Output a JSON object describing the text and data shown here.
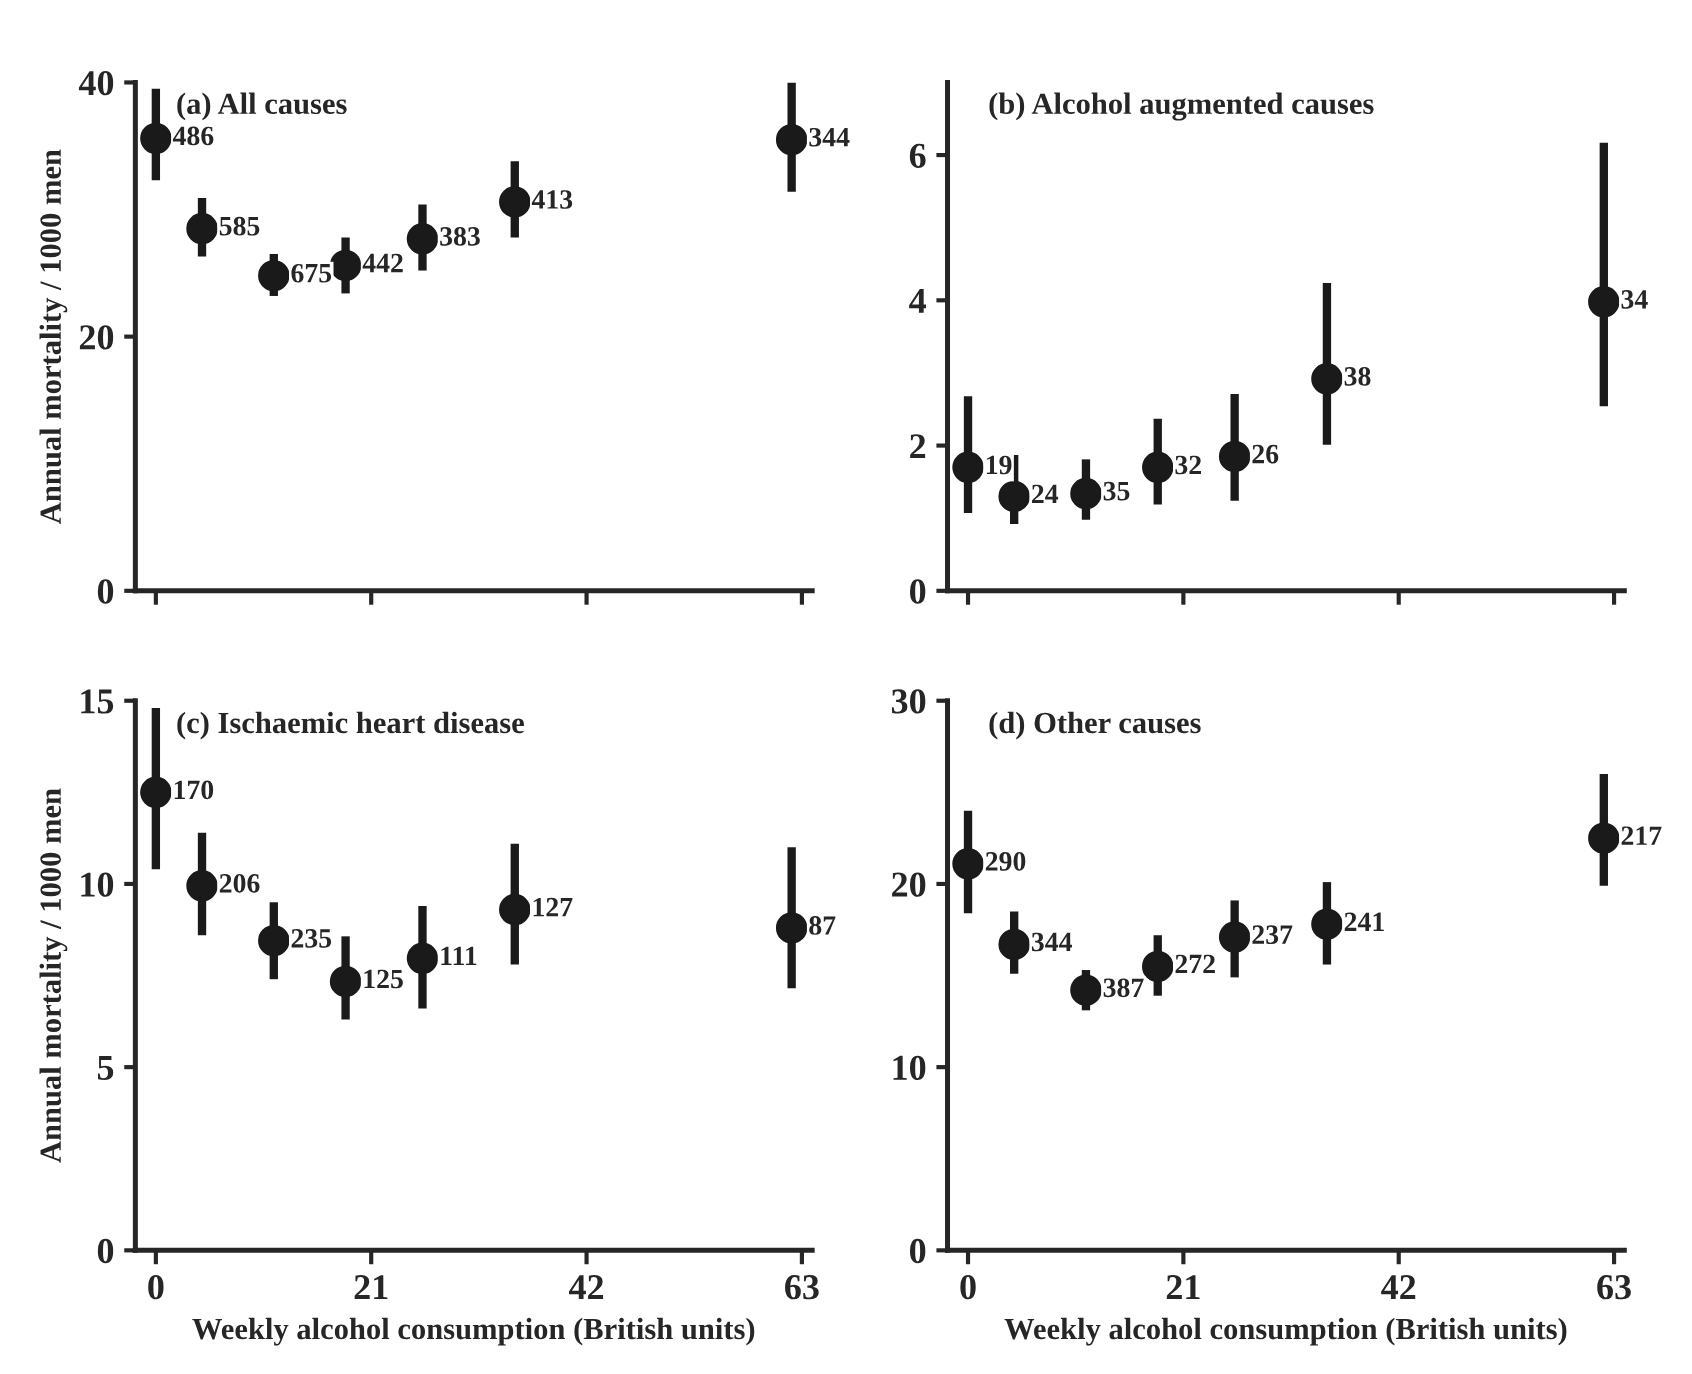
{
  "chart_data": [
    {
      "type": "scatter",
      "title": "(a) All causes",
      "ylabel": "Annual mortality / 1000 men",
      "marker": "circle",
      "tick_labels": "y",
      "xlim": [
        -2,
        64
      ],
      "xticks": [
        {
          "value": 0,
          "label": null
        },
        {
          "value": 21,
          "label": null
        },
        {
          "value": 42,
          "label": null
        },
        {
          "value": 63,
          "label": null
        }
      ],
      "ylim": [
        0,
        40
      ],
      "yticks": [
        0,
        20,
        40
      ],
      "x": [
        0,
        4.5,
        11.5,
        18.5,
        26,
        35,
        62
      ],
      "series": [
        {
          "color": "#1a1a1a",
          "values": [
            35.6,
            28.5,
            24.8,
            25.6,
            27.7,
            30.6,
            35.5
          ],
          "errors": [
            [
              32.3,
              39.5
            ],
            [
              26.3,
              30.9
            ],
            [
              23.2,
              26.5
            ],
            [
              23.4,
              27.8
            ],
            [
              25.2,
              30.4
            ],
            [
              27.8,
              33.8
            ],
            [
              31.4,
              40
            ]
          ]
        }
      ],
      "annotations": [
        {
          "text": "486",
          "x": 0,
          "y": 35.6
        },
        {
          "text": "585",
          "x": 4.5,
          "y": 28.5
        },
        {
          "text": "675",
          "x": 11.5,
          "y": 24.8
        },
        {
          "text": "442",
          "x": 18.5,
          "y": 25.6
        },
        {
          "text": "383",
          "x": 26,
          "y": 27.7
        },
        {
          "text": "413",
          "x": 35,
          "y": 30.6
        },
        {
          "text": "344",
          "x": 62,
          "y": 35.5
        }
      ]
    },
    {
      "type": "scatter",
      "title": "(b) Alcohol augmented causes",
      "marker": "circle",
      "tick_labels": "y",
      "xlim": [
        -2,
        64
      ],
      "xticks": [
        {
          "value": 0,
          "label": null
        },
        {
          "value": 21,
          "label": null
        },
        {
          "value": 42,
          "label": null
        },
        {
          "value": 63,
          "label": null
        }
      ],
      "ylim": [
        0,
        7
      ],
      "yticks": [
        0,
        2,
        4,
        6
      ],
      "x": [
        0,
        4.5,
        11.5,
        18.5,
        26,
        35,
        62
      ],
      "series": [
        {
          "color": "#1a1a1a",
          "values": [
            1.7,
            1.3,
            1.34,
            1.7,
            1.85,
            2.92,
            3.98
          ],
          "errors": [
            [
              1.07,
              2.68
            ],
            [
              0.92,
              1.87
            ],
            [
              0.98,
              1.81
            ],
            [
              1.19,
              2.37
            ],
            [
              1.24,
              2.71
            ],
            [
              2.01,
              4.24
            ],
            [
              2.54,
              6.17
            ]
          ]
        }
      ],
      "annotations": [
        {
          "text": "19",
          "x": 0,
          "y": 1.7
        },
        {
          "text": "24",
          "x": 4.5,
          "y": 1.3
        },
        {
          "text": "35",
          "x": 11.5,
          "y": 1.34
        },
        {
          "text": "32",
          "x": 18.5,
          "y": 1.7
        },
        {
          "text": "26",
          "x": 26,
          "y": 1.85
        },
        {
          "text": "38",
          "x": 35,
          "y": 2.92
        },
        {
          "text": "34",
          "x": 62,
          "y": 3.98
        }
      ]
    },
    {
      "type": "scatter",
      "title": "(c) Ischaemic heart disease",
      "xlabel": "Weekly alcohol consumption (British units)",
      "ylabel": "Annual mortality / 1000 men",
      "marker": "circle",
      "xlim": [
        -2,
        64
      ],
      "xticks": [
        0,
        21,
        42,
        63
      ],
      "ylim": [
        0,
        15
      ],
      "yticks": [
        0,
        5,
        10,
        15
      ],
      "x": [
        0,
        4.5,
        11.5,
        18.5,
        26,
        35,
        62
      ],
      "series": [
        {
          "color": "#1a1a1a",
          "values": [
            12.5,
            9.95,
            8.45,
            7.34,
            7.97,
            9.3,
            8.8
          ],
          "errors": [
            [
              10.4,
              14.8
            ],
            [
              8.6,
              11.4
            ],
            [
              7.4,
              9.5
            ],
            [
              6.3,
              8.57
            ],
            [
              6.6,
              9.4
            ],
            [
              7.8,
              11.1
            ],
            [
              7.15,
              11.0
            ]
          ]
        }
      ],
      "annotations": [
        {
          "text": "170",
          "x": 0,
          "y": 12.5
        },
        {
          "text": "206",
          "x": 4.5,
          "y": 9.95
        },
        {
          "text": "235",
          "x": 11.5,
          "y": 8.45
        },
        {
          "text": "125",
          "x": 18.5,
          "y": 7.34
        },
        {
          "text": "111",
          "x": 26,
          "y": 7.97
        },
        {
          "text": "127",
          "x": 35,
          "y": 9.3
        },
        {
          "text": "87",
          "x": 62,
          "y": 8.8
        }
      ]
    },
    {
      "type": "scatter",
      "title": "(d) Other causes",
      "xlabel": "Weekly alcohol consumption (British units)",
      "marker": "circle",
      "xlim": [
        -2,
        64
      ],
      "xticks": [
        0,
        21,
        42,
        63
      ],
      "ylim": [
        0,
        30
      ],
      "yticks": [
        0,
        10,
        20,
        30
      ],
      "x": [
        0,
        4.5,
        11.5,
        18.5,
        26,
        35,
        62
      ],
      "series": [
        {
          "color": "#1a1a1a",
          "values": [
            21.1,
            16.7,
            14.2,
            15.5,
            17.1,
            17.8,
            22.5
          ],
          "errors": [
            [
              18.4,
              24.0
            ],
            [
              15.1,
              18.5
            ],
            [
              13.1,
              15.3
            ],
            [
              13.9,
              17.2
            ],
            [
              14.9,
              19.1
            ],
            [
              15.6,
              20.1
            ],
            [
              19.9,
              26.0
            ]
          ]
        }
      ],
      "annotations": [
        {
          "text": "290",
          "x": 0,
          "y": 21.1
        },
        {
          "text": "344",
          "x": 4.5,
          "y": 16.7
        },
        {
          "text": "387",
          "x": 11.5,
          "y": 14.2
        },
        {
          "text": "272",
          "x": 18.5,
          "y": 15.5
        },
        {
          "text": "237",
          "x": 26,
          "y": 17.1
        },
        {
          "text": "241",
          "x": 35,
          "y": 17.8
        },
        {
          "text": "217",
          "x": 62,
          "y": 22.5
        }
      ]
    }
  ]
}
